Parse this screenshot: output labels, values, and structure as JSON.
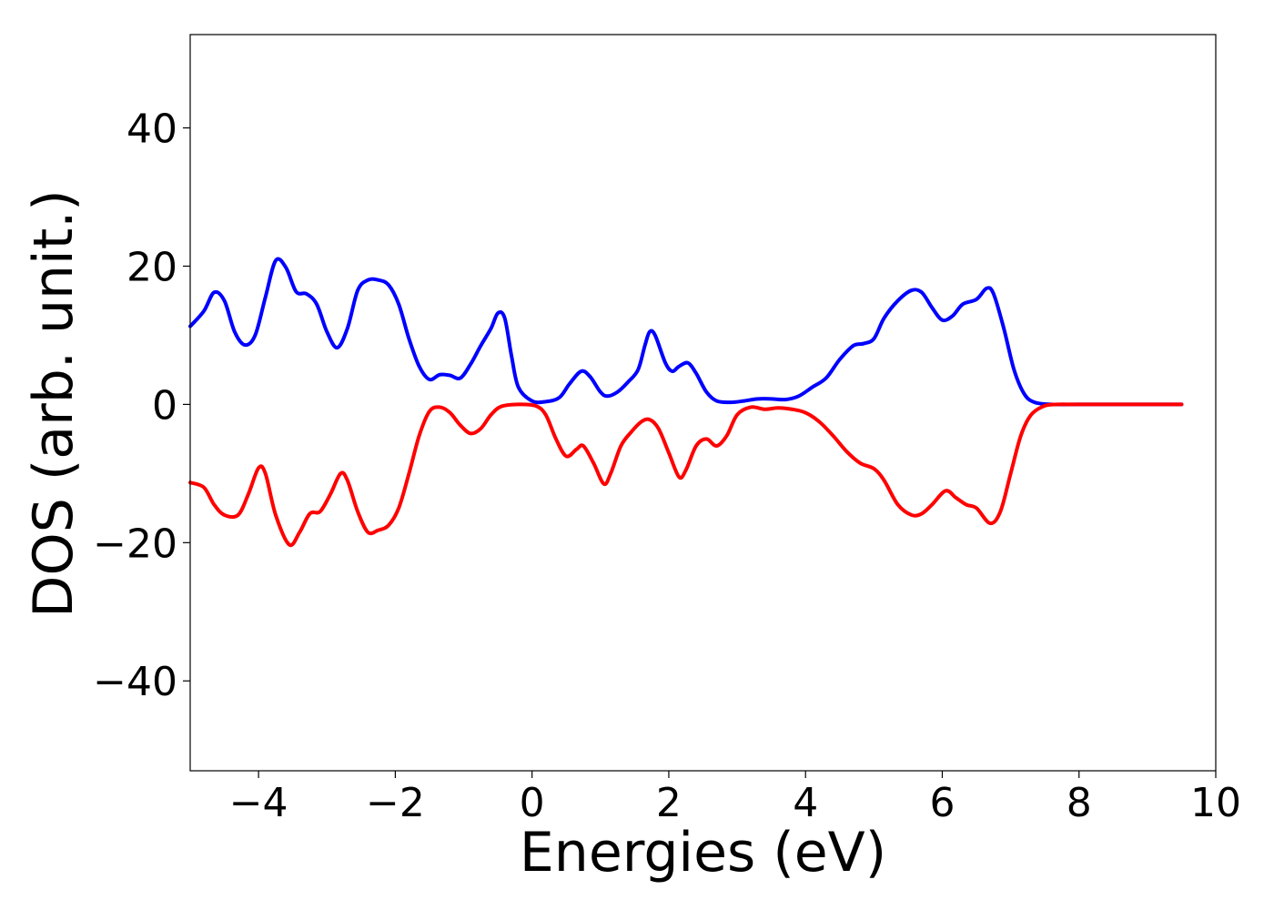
{
  "chart_data": {
    "type": "line",
    "title": "",
    "xlabel": "Energies (eV)",
    "ylabel": "DOS (arb. unit.)",
    "xlim": [
      -5,
      10
    ],
    "ylim": [
      -53,
      53.5
    ],
    "grid": false,
    "legend": "none",
    "x_ticks": [
      {
        "value": -4,
        "label": "−4"
      },
      {
        "value": -2,
        "label": "−2"
      },
      {
        "value": 0,
        "label": "0"
      },
      {
        "value": 2,
        "label": "2"
      },
      {
        "value": 4,
        "label": "4"
      },
      {
        "value": 6,
        "label": "6"
      },
      {
        "value": 8,
        "label": "8"
      },
      {
        "value": 10,
        "label": "10"
      }
    ],
    "y_ticks": [
      {
        "value": 40,
        "label": "40"
      },
      {
        "value": 20,
        "label": "20"
      },
      {
        "value": 0,
        "label": "0"
      },
      {
        "value": -20,
        "label": "−20"
      },
      {
        "value": -40,
        "label": "−40"
      }
    ],
    "series": [
      {
        "color": "#0000ff",
        "points": [
          [
            -5.0,
            11.3
          ],
          [
            -4.8,
            13.5
          ],
          [
            -4.65,
            16.2
          ],
          [
            -4.5,
            15.0
          ],
          [
            -4.35,
            10.5
          ],
          [
            -4.2,
            8.6
          ],
          [
            -4.05,
            10.0
          ],
          [
            -3.9,
            15.5
          ],
          [
            -3.75,
            20.8
          ],
          [
            -3.6,
            19.8
          ],
          [
            -3.45,
            16.3
          ],
          [
            -3.3,
            16.0
          ],
          [
            -3.15,
            14.5
          ],
          [
            -3.0,
            10.5
          ],
          [
            -2.85,
            8.2
          ],
          [
            -2.7,
            11.0
          ],
          [
            -2.55,
            16.5
          ],
          [
            -2.4,
            18.0
          ],
          [
            -2.25,
            18.0
          ],
          [
            -2.1,
            17.3
          ],
          [
            -1.95,
            14.5
          ],
          [
            -1.8,
            9.5
          ],
          [
            -1.65,
            5.5
          ],
          [
            -1.5,
            3.6
          ],
          [
            -1.35,
            4.3
          ],
          [
            -1.2,
            4.2
          ],
          [
            -1.05,
            3.8
          ],
          [
            -0.9,
            5.8
          ],
          [
            -0.75,
            8.5
          ],
          [
            -0.6,
            11.0
          ],
          [
            -0.5,
            13.2
          ],
          [
            -0.4,
            12.5
          ],
          [
            -0.3,
            7.0
          ],
          [
            -0.2,
            2.5
          ],
          [
            0.0,
            0.5
          ],
          [
            0.2,
            0.4
          ],
          [
            0.4,
            1.0
          ],
          [
            0.55,
            3.0
          ],
          [
            0.72,
            4.8
          ],
          [
            0.85,
            4.0
          ],
          [
            1.0,
            1.8
          ],
          [
            1.1,
            1.2
          ],
          [
            1.25,
            1.8
          ],
          [
            1.4,
            3.2
          ],
          [
            1.55,
            5.0
          ],
          [
            1.65,
            8.5
          ],
          [
            1.72,
            10.5
          ],
          [
            1.8,
            10.0
          ],
          [
            1.95,
            6.0
          ],
          [
            2.05,
            4.8
          ],
          [
            2.15,
            5.5
          ],
          [
            2.28,
            6.0
          ],
          [
            2.4,
            4.5
          ],
          [
            2.55,
            1.8
          ],
          [
            2.7,
            0.5
          ],
          [
            2.9,
            0.3
          ],
          [
            3.1,
            0.5
          ],
          [
            3.3,
            0.8
          ],
          [
            3.5,
            0.8
          ],
          [
            3.7,
            0.7
          ],
          [
            3.9,
            1.2
          ],
          [
            4.1,
            2.5
          ],
          [
            4.3,
            3.8
          ],
          [
            4.5,
            6.5
          ],
          [
            4.7,
            8.5
          ],
          [
            4.85,
            8.8
          ],
          [
            5.0,
            9.5
          ],
          [
            5.15,
            12.5
          ],
          [
            5.35,
            15.0
          ],
          [
            5.55,
            16.5
          ],
          [
            5.7,
            16.2
          ],
          [
            5.85,
            14.0
          ],
          [
            6.0,
            12.2
          ],
          [
            6.15,
            12.8
          ],
          [
            6.3,
            14.5
          ],
          [
            6.5,
            15.2
          ],
          [
            6.65,
            16.8
          ],
          [
            6.75,
            16.0
          ],
          [
            6.9,
            11.0
          ],
          [
            7.05,
            5.0
          ],
          [
            7.2,
            1.5
          ],
          [
            7.35,
            0.3
          ],
          [
            7.6,
            0.0
          ],
          [
            8.0,
            0.0
          ],
          [
            9.0,
            0.0
          ],
          [
            9.5,
            0.0
          ]
        ]
      },
      {
        "color": "#ff0000",
        "points": [
          [
            -5.0,
            -11.3
          ],
          [
            -4.8,
            -12.0
          ],
          [
            -4.65,
            -14.5
          ],
          [
            -4.5,
            -16.0
          ],
          [
            -4.3,
            -16.0
          ],
          [
            -4.15,
            -13.0
          ],
          [
            -4.0,
            -9.2
          ],
          [
            -3.9,
            -10.0
          ],
          [
            -3.75,
            -16.0
          ],
          [
            -3.55,
            -20.3
          ],
          [
            -3.4,
            -18.5
          ],
          [
            -3.25,
            -15.8
          ],
          [
            -3.1,
            -15.5
          ],
          [
            -2.95,
            -13.0
          ],
          [
            -2.8,
            -10.0
          ],
          [
            -2.7,
            -11.0
          ],
          [
            -2.55,
            -15.5
          ],
          [
            -2.4,
            -18.5
          ],
          [
            -2.25,
            -18.2
          ],
          [
            -2.1,
            -17.5
          ],
          [
            -1.95,
            -15.0
          ],
          [
            -1.8,
            -10.0
          ],
          [
            -1.65,
            -4.5
          ],
          [
            -1.5,
            -1.0
          ],
          [
            -1.35,
            -0.4
          ],
          [
            -1.2,
            -1.2
          ],
          [
            -1.05,
            -3.0
          ],
          [
            -0.9,
            -4.2
          ],
          [
            -0.75,
            -3.5
          ],
          [
            -0.6,
            -1.5
          ],
          [
            -0.45,
            -0.3
          ],
          [
            -0.2,
            0.0
          ],
          [
            0.05,
            -0.2
          ],
          [
            0.2,
            -1.5
          ],
          [
            0.35,
            -5.0
          ],
          [
            0.5,
            -7.5
          ],
          [
            0.65,
            -6.5
          ],
          [
            0.75,
            -6.0
          ],
          [
            0.9,
            -8.5
          ],
          [
            1.05,
            -11.5
          ],
          [
            1.15,
            -10.0
          ],
          [
            1.3,
            -6.0
          ],
          [
            1.45,
            -4.0
          ],
          [
            1.6,
            -2.5
          ],
          [
            1.72,
            -2.2
          ],
          [
            1.85,
            -3.5
          ],
          [
            2.0,
            -7.0
          ],
          [
            2.15,
            -10.5
          ],
          [
            2.25,
            -9.5
          ],
          [
            2.4,
            -6.0
          ],
          [
            2.55,
            -5.0
          ],
          [
            2.7,
            -6.0
          ],
          [
            2.85,
            -4.5
          ],
          [
            3.0,
            -1.5
          ],
          [
            3.2,
            -0.4
          ],
          [
            3.4,
            -0.7
          ],
          [
            3.6,
            -0.5
          ],
          [
            3.8,
            -0.7
          ],
          [
            4.0,
            -1.2
          ],
          [
            4.2,
            -2.5
          ],
          [
            4.4,
            -4.5
          ],
          [
            4.6,
            -6.8
          ],
          [
            4.8,
            -8.5
          ],
          [
            5.0,
            -9.3
          ],
          [
            5.15,
            -11.0
          ],
          [
            5.35,
            -14.5
          ],
          [
            5.55,
            -16.0
          ],
          [
            5.7,
            -15.8
          ],
          [
            5.85,
            -14.5
          ],
          [
            6.05,
            -12.5
          ],
          [
            6.2,
            -13.5
          ],
          [
            6.35,
            -14.5
          ],
          [
            6.5,
            -15.0
          ],
          [
            6.7,
            -17.2
          ],
          [
            6.85,
            -15.5
          ],
          [
            7.0,
            -10.0
          ],
          [
            7.15,
            -4.5
          ],
          [
            7.3,
            -1.5
          ],
          [
            7.5,
            -0.2
          ],
          [
            7.7,
            0.0
          ],
          [
            8.0,
            0.0
          ],
          [
            9.0,
            0.0
          ],
          [
            9.5,
            0.0
          ]
        ]
      }
    ]
  }
}
